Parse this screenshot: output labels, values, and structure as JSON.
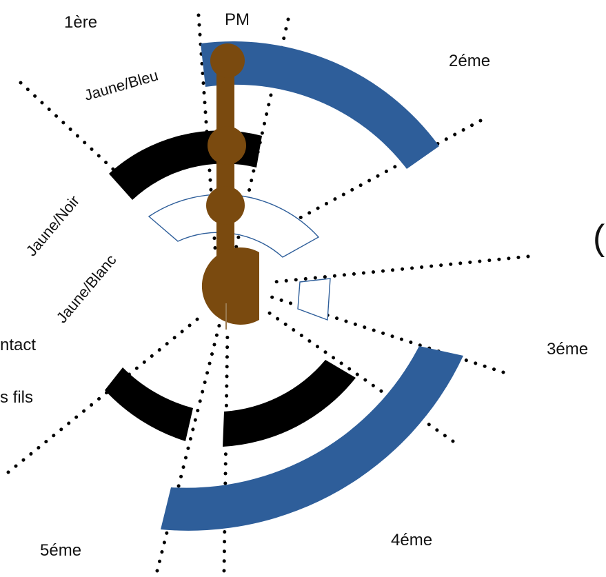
{
  "colors": {
    "blue": "#2e5e9a",
    "black": "#000000",
    "brown": "#7a4a0f",
    "outline": "#2e5e9a"
  },
  "labels": {
    "pm": "PM",
    "first": "1ère",
    "second": "2éme",
    "third": "3éme",
    "fourth": "4éme",
    "fifth": "5éme",
    "contact_partial": "ntact",
    "fils_partial": "s fils"
  },
  "wires": {
    "yellow_blue": "Jaune/Bleu",
    "yellow_black": "Jaune/Noir",
    "yellow_white": "Jaune/Blanc"
  },
  "partial_glyph": "("
}
